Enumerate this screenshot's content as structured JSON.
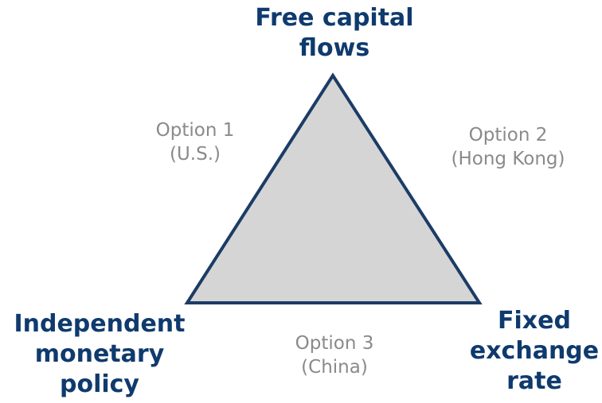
{
  "colors": {
    "corner_text": "#0f3a6e",
    "option_text": "#8a8a8a",
    "triangle_fill": "#d5d5d5",
    "triangle_stroke": "#1b3c66"
  },
  "corners": {
    "top": [
      "Free capital",
      "flows"
    ],
    "left": [
      "Independent",
      "monetary",
      "policy"
    ],
    "right": [
      "Fixed",
      "exchange",
      "rate"
    ]
  },
  "options": {
    "one": [
      "Option 1",
      "(U.S.)"
    ],
    "two": [
      "Option 2",
      "(Hong Kong)"
    ],
    "three": [
      "Option 3",
      "(China)"
    ]
  }
}
